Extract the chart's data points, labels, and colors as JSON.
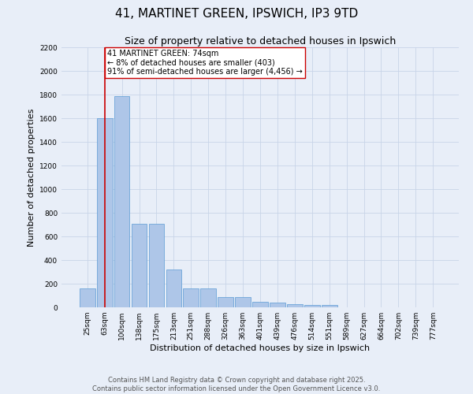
{
  "title": "41, MARTINET GREEN, IPSWICH, IP3 9TD",
  "subtitle": "Size of property relative to detached houses in Ipswich",
  "xlabel": "Distribution of detached houses by size in Ipswich",
  "ylabel": "Number of detached properties",
  "categories": [
    "25sqm",
    "63sqm",
    "100sqm",
    "138sqm",
    "175sqm",
    "213sqm",
    "251sqm",
    "288sqm",
    "326sqm",
    "363sqm",
    "401sqm",
    "439sqm",
    "476sqm",
    "514sqm",
    "551sqm",
    "589sqm",
    "627sqm",
    "664sqm",
    "702sqm",
    "739sqm",
    "777sqm"
  ],
  "values": [
    160,
    1600,
    1790,
    710,
    710,
    320,
    160,
    160,
    85,
    85,
    50,
    40,
    25,
    20,
    20,
    0,
    0,
    0,
    0,
    0,
    0
  ],
  "bar_color": "#aec6e8",
  "bar_edge_color": "#5b9bd5",
  "vline_x": 1,
  "vline_color": "#cc0000",
  "annotation_text": "41 MARTINET GREEN: 74sqm\n← 8% of detached houses are smaller (403)\n91% of semi-detached houses are larger (4,456) →",
  "annotation_box_color": "#ffffff",
  "annotation_box_edge": "#cc0000",
  "grid_color": "#c8d4e8",
  "background_color": "#e8eef8",
  "ylim": [
    0,
    2200
  ],
  "yticks": [
    0,
    200,
    400,
    600,
    800,
    1000,
    1200,
    1400,
    1600,
    1800,
    2000,
    2200
  ],
  "footer_line1": "Contains HM Land Registry data © Crown copyright and database right 2025.",
  "footer_line2": "Contains public sector information licensed under the Open Government Licence v3.0.",
  "title_fontsize": 11,
  "subtitle_fontsize": 9,
  "tick_fontsize": 6.5,
  "ylabel_fontsize": 8,
  "xlabel_fontsize": 8,
  "footer_fontsize": 6,
  "annotation_fontsize": 7
}
